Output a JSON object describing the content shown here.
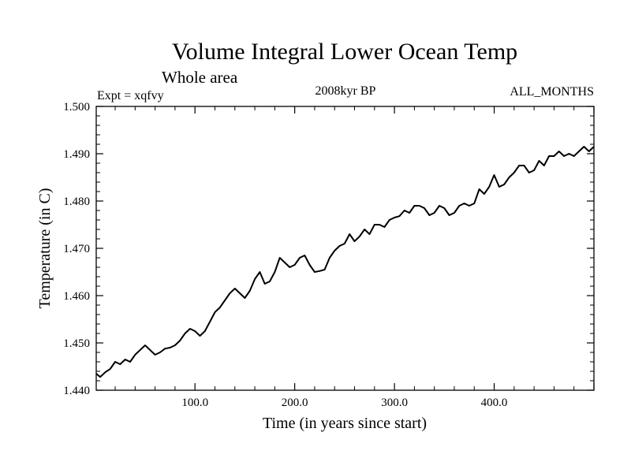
{
  "header": {
    "title": "Volume Integral Lower Ocean Temp",
    "subtitle": "Whole area",
    "expt": "Expt = xqfvy",
    "period": "2008kyr BP",
    "months": "ALL_MONTHS"
  },
  "chart_data": {
    "type": "line",
    "title": "Volume Integral Lower Ocean Temp",
    "subtitle": "Whole area",
    "xlabel": "Time (in years since start)",
    "ylabel": "Temperature (in C)",
    "xlim": [
      1,
      500
    ],
    "ylim": [
      1.44,
      1.5
    ],
    "x_ticks": [
      100,
      200,
      300,
      400
    ],
    "x_tick_labels": [
      "100.0",
      "200.0",
      "300.0",
      "400.0"
    ],
    "y_ticks": [
      1.44,
      1.45,
      1.46,
      1.47,
      1.48,
      1.49,
      1.5
    ],
    "y_tick_labels": [
      "1.440",
      "1.450",
      "1.460",
      "1.470",
      "1.480",
      "1.490",
      "1.500"
    ],
    "series": [
      {
        "name": "xqfvy",
        "x": [
          1,
          5,
          10,
          15,
          20,
          25,
          30,
          35,
          40,
          45,
          50,
          55,
          60,
          65,
          70,
          75,
          80,
          85,
          90,
          95,
          100,
          105,
          110,
          115,
          120,
          125,
          130,
          135,
          140,
          145,
          150,
          155,
          160,
          165,
          170,
          175,
          180,
          185,
          190,
          195,
          200,
          205,
          210,
          215,
          220,
          225,
          230,
          235,
          240,
          245,
          250,
          255,
          260,
          265,
          270,
          275,
          280,
          285,
          290,
          295,
          300,
          305,
          310,
          315,
          320,
          325,
          330,
          335,
          340,
          345,
          350,
          355,
          360,
          365,
          370,
          375,
          380,
          385,
          390,
          395,
          400,
          405,
          410,
          415,
          420,
          425,
          430,
          435,
          440,
          445,
          450,
          455,
          460,
          465,
          470,
          475,
          480,
          485,
          490,
          495,
          500
        ],
        "values": [
          1.4435,
          1.4428,
          1.4438,
          1.4445,
          1.446,
          1.4455,
          1.4465,
          1.446,
          1.4475,
          1.4485,
          1.4495,
          1.4485,
          1.4475,
          1.448,
          1.4488,
          1.449,
          1.4495,
          1.4505,
          1.452,
          1.453,
          1.4525,
          1.4515,
          1.4525,
          1.4545,
          1.4565,
          1.4575,
          1.459,
          1.4605,
          1.4615,
          1.4605,
          1.4595,
          1.461,
          1.4635,
          1.465,
          1.4625,
          1.463,
          1.465,
          1.468,
          1.467,
          1.466,
          1.4665,
          1.468,
          1.4685,
          1.4665,
          1.465,
          1.4652,
          1.4655,
          1.468,
          1.4695,
          1.4705,
          1.471,
          1.473,
          1.4715,
          1.4725,
          1.474,
          1.473,
          1.475,
          1.475,
          1.4745,
          1.476,
          1.4765,
          1.4768,
          1.478,
          1.4775,
          1.479,
          1.479,
          1.4785,
          1.477,
          1.4775,
          1.479,
          1.4785,
          1.477,
          1.4775,
          1.479,
          1.4795,
          1.479,
          1.4795,
          1.4825,
          1.4815,
          1.483,
          1.4855,
          1.483,
          1.4835,
          1.485,
          1.486,
          1.4875,
          1.4875,
          1.486,
          1.4865,
          1.4885,
          1.4875,
          1.4895,
          1.4895,
          1.4905,
          1.4895,
          1.49,
          1.4895,
          1.4905,
          1.4915,
          1.4905,
          1.4915
        ]
      }
    ]
  }
}
